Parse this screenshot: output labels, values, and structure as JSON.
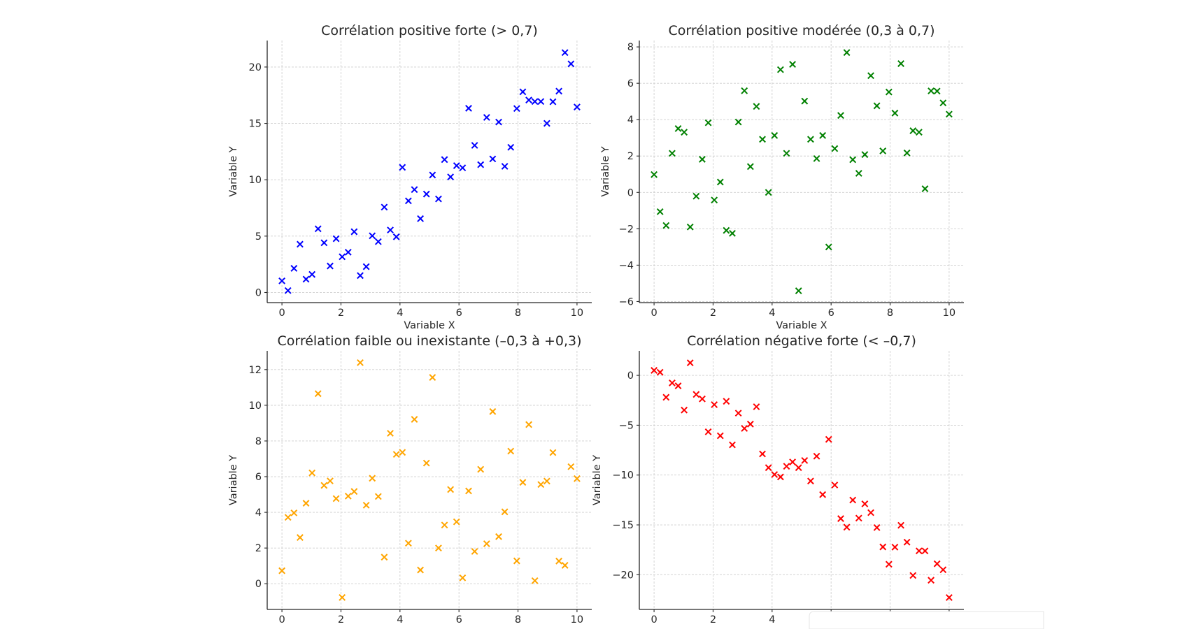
{
  "chart_data": [
    {
      "type": "scatter",
      "title": "Corrélation positive forte (> 0,7)",
      "xlabel": "Variable X",
      "ylabel": "Variable Y",
      "color": "#0000ff",
      "marker": "x",
      "grid": true,
      "xlim": [
        -0.5,
        10.5
      ],
      "ylim": [
        -0.9,
        22.35
      ],
      "xticks": [
        0,
        2,
        4,
        6,
        8,
        10
      ],
      "xtick_labels": [
        "0",
        "2",
        "4",
        "6",
        "8",
        "10"
      ],
      "yticks": [
        0,
        5,
        10,
        15,
        20
      ],
      "ytick_labels": [
        "0",
        "5",
        "10",
        "15",
        "20"
      ],
      "x_range": [
        0,
        10
      ],
      "n_points": 50,
      "y": [
        1.03,
        0.17,
        2.14,
        4.28,
        1.18,
        1.6,
        5.65,
        4.41,
        2.35,
        4.77,
        3.17,
        3.57,
        5.39,
        1.5,
        2.29,
        5.03,
        4.51,
        7.57,
        5.54,
        4.94,
        11.1,
        8.13,
        9.13,
        6.55,
        8.73,
        10.42,
        8.3,
        11.79,
        10.25,
        11.25,
        11.06,
        16.34,
        13.05,
        11.34,
        15.53,
        11.85,
        15.12,
        11.19,
        12.88,
        16.32,
        17.8,
        17.07,
        16.94,
        16.94,
        15.0,
        16.92,
        17.86,
        21.28,
        20.28,
        16.45
      ]
    },
    {
      "type": "scatter",
      "title": "Corrélation positive modérée (0,3 à 0,7)",
      "xlabel": "Variable X",
      "ylabel": "Variable Y",
      "color": "#008000",
      "marker": "x",
      "grid": true,
      "xlim": [
        -0.5,
        10.5
      ],
      "ylim": [
        -6.06,
        8.35
      ],
      "xticks": [
        0,
        2,
        4,
        6,
        8,
        10
      ],
      "xtick_labels": [
        "0",
        "2",
        "4",
        "6",
        "8",
        "10"
      ],
      "yticks": [
        -6,
        -4,
        -2,
        0,
        2,
        4,
        6,
        8
      ],
      "ytick_labels": [
        "−6",
        "−4",
        "−2",
        "0",
        "2",
        "4",
        "6",
        "8"
      ],
      "x_range": [
        0,
        10
      ],
      "n_points": 50,
      "y": [
        0.98,
        -1.06,
        -1.82,
        2.15,
        3.51,
        3.31,
        -1.9,
        -0.21,
        1.82,
        3.83,
        -0.42,
        0.57,
        -2.09,
        -2.25,
        3.87,
        5.59,
        1.42,
        4.73,
        2.92,
        0.0,
        3.13,
        6.75,
        2.15,
        7.04,
        -5.41,
        5.02,
        2.92,
        1.86,
        3.13,
        -3.0,
        2.41,
        4.23,
        7.69,
        1.8,
        1.05,
        2.08,
        6.42,
        4.76,
        2.28,
        5.52,
        4.36,
        7.08,
        2.17,
        3.39,
        3.31,
        0.2,
        5.58,
        5.57,
        4.92,
        4.3
      ]
    },
    {
      "type": "scatter",
      "title": "Corrélation faible ou inexistante (–0,3 à +0,3)",
      "xlabel": "",
      "ylabel": "Variable Y",
      "color": "#ffa500",
      "marker": "x",
      "grid": true,
      "xlim": [
        -0.5,
        10.5
      ],
      "ylim": [
        -1.44,
        13.05
      ],
      "xticks": [
        0,
        2,
        4,
        6,
        8,
        10
      ],
      "xtick_labels": [
        "0",
        "2",
        "4",
        "6",
        "8",
        "10"
      ],
      "yticks": [
        0,
        2,
        4,
        6,
        8,
        10,
        12
      ],
      "ytick_labels": [
        "0",
        "2",
        "4",
        "6",
        "8",
        "10",
        "12"
      ],
      "x_range": [
        0,
        10
      ],
      "n_points": 50,
      "y": [
        0.73,
        3.72,
        3.97,
        2.59,
        4.51,
        6.21,
        10.65,
        5.51,
        5.76,
        4.77,
        -0.77,
        4.91,
        5.17,
        12.39,
        4.4,
        5.91,
        4.89,
        1.49,
        8.43,
        7.25,
        7.36,
        2.27,
        9.21,
        0.77,
        6.76,
        11.56,
        2.0,
        3.29,
        5.28,
        3.47,
        0.33,
        5.2,
        1.81,
        6.41,
        2.24,
        9.65,
        2.64,
        4.03,
        7.43,
        1.28,
        5.68,
        8.92,
        0.17,
        5.56,
        5.75,
        7.35,
        1.27,
        1.03,
        6.56,
        5.89
      ]
    },
    {
      "type": "scatter",
      "title": "Corrélation négative forte (< –0,7)",
      "xlabel": "",
      "ylabel": "Variable Y",
      "color": "#ff0000",
      "marker": "x",
      "grid": true,
      "xlim": [
        -0.5,
        10.5
      ],
      "ylim": [
        -23.48,
        2.46
      ],
      "xticks": [
        0,
        2,
        4,
        6,
        8,
        10
      ],
      "xtick_labels": [
        "0",
        "2",
        "4",
        "",
        "",
        ""
      ],
      "yticks": [
        -20,
        -15,
        -10,
        -5,
        0
      ],
      "ytick_labels": [
        "−20",
        "−15",
        "−10",
        "−5",
        "0"
      ],
      "x_range": [
        0,
        10
      ],
      "n_points": 50,
      "y": [
        0.5,
        0.31,
        -2.2,
        -0.76,
        -1.05,
        -3.48,
        1.26,
        -1.91,
        -2.36,
        -5.66,
        -2.94,
        -6.06,
        -2.6,
        -6.97,
        -3.79,
        -5.32,
        -4.89,
        -3.15,
        -7.88,
        -9.26,
        -9.95,
        -10.19,
        -9.12,
        -8.69,
        -9.26,
        -8.54,
        -10.6,
        -8.11,
        -11.96,
        -6.42,
        -11.0,
        -14.37,
        -15.23,
        -12.51,
        -14.32,
        -12.89,
        -13.77,
        -15.27,
        -17.21,
        -18.95,
        -17.23,
        -15.04,
        -16.73,
        -20.07,
        -17.61,
        -17.61,
        -20.55,
        -18.9,
        -19.5,
        -22.29
      ]
    }
  ]
}
